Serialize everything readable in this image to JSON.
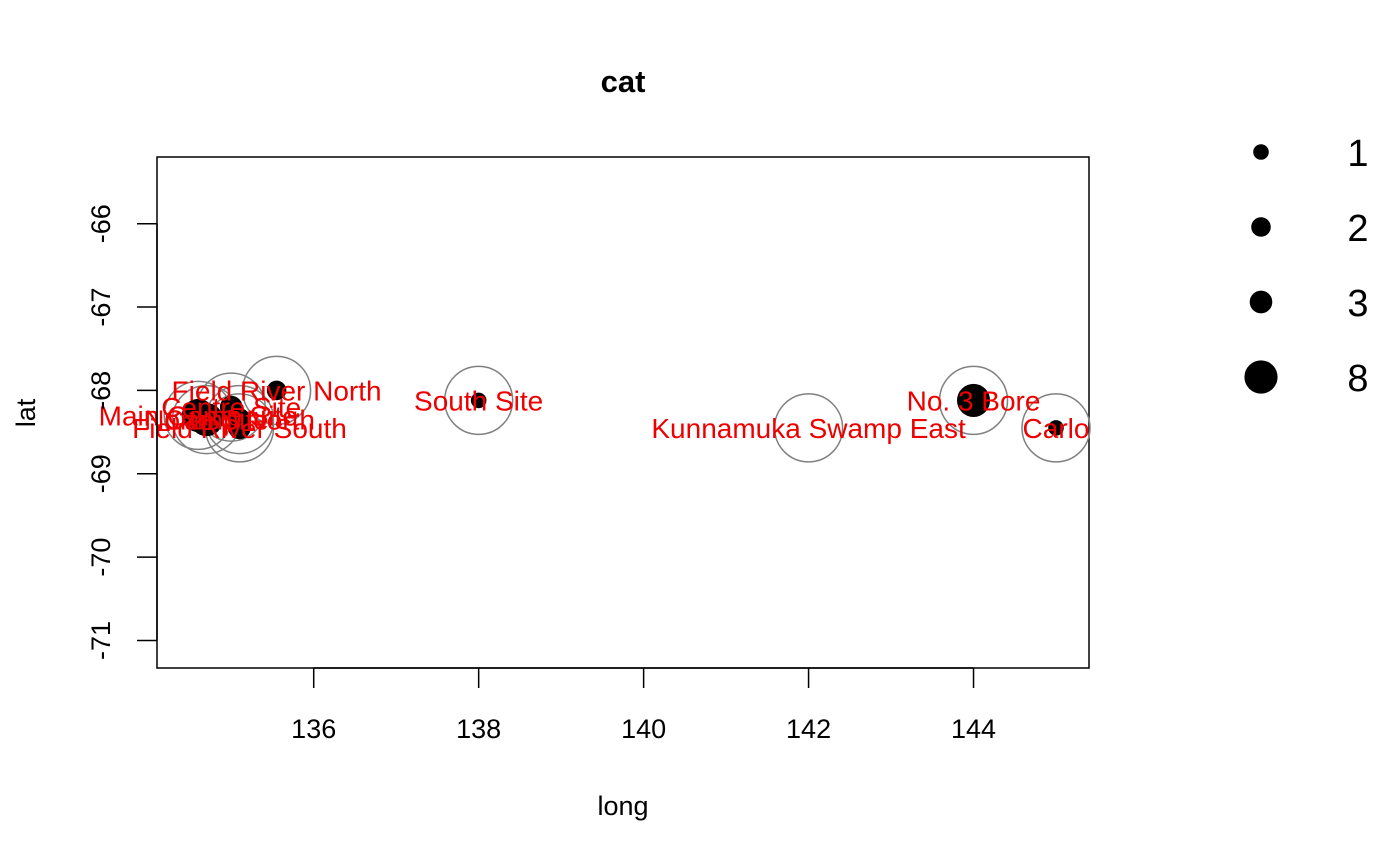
{
  "chart_data": {
    "type": "scatter",
    "title": "cat",
    "xlabel": "long",
    "ylabel": "lat",
    "xlim": [
      134.1,
      145.4
    ],
    "ylim": [
      -71.33,
      -65.2
    ],
    "xticks": [
      136,
      138,
      140,
      142,
      144
    ],
    "yticks": [
      -66,
      -67,
      -68,
      -69,
      -70,
      -71
    ],
    "grid": false,
    "legend_position": "right",
    "colors": {
      "points": "#000000",
      "rings": "#808080",
      "labels": "#ee0000"
    },
    "legend": [
      {
        "label": "1",
        "value": 1
      },
      {
        "label": "2",
        "value": 2
      },
      {
        "label": "3",
        "value": 3
      },
      {
        "label": "8",
        "value": 8
      }
    ],
    "points": [
      {
        "name": "Main Camp Site",
        "x": 134.6,
        "y": -68.3,
        "value": 8
      },
      {
        "name": "North Site",
        "x": 134.7,
        "y": -68.35,
        "value": 8
      },
      {
        "name": "Centre Site",
        "x": 135.0,
        "y": -68.2,
        "value": 3
      },
      {
        "name": "Camp North",
        "x": 135.1,
        "y": -68.35,
        "value": 3
      },
      {
        "name": "Field River North",
        "x": 135.55,
        "y": -68.0,
        "value": 2
      },
      {
        "name": "Field River South",
        "x": 135.1,
        "y": -68.45,
        "value": 3
      },
      {
        "name": "South Site",
        "x": 138.0,
        "y": -68.12,
        "value": 1
      },
      {
        "name": "Kunnamuka Swamp East",
        "x": 142.0,
        "y": -68.45,
        "value": 0
      },
      {
        "name": "No. 3 Bore",
        "x": 144.0,
        "y": -68.12,
        "value": 8
      },
      {
        "name": "Carlo",
        "x": 145.0,
        "y": -68.45,
        "value": 1
      }
    ],
    "labels": [
      {
        "text": "Main Camp Site",
        "x": 134.6,
        "y": -68.3
      },
      {
        "text": "North Site",
        "x": 134.7,
        "y": -68.35
      },
      {
        "text": "Centre Site",
        "x": 135.0,
        "y": -68.2
      },
      {
        "text": "Camp North",
        "x": 135.1,
        "y": -68.35
      },
      {
        "text": "Field River North",
        "x": 135.55,
        "y": -68.0
      },
      {
        "text": "Field River South",
        "x": 135.1,
        "y": -68.45
      },
      {
        "text": "South Site",
        "x": 138.0,
        "y": -68.12
      },
      {
        "text": "Kunnamuka Swamp East",
        "x": 142.0,
        "y": -68.45
      },
      {
        "text": "No. 3 Bore",
        "x": 144.0,
        "y": -68.12
      },
      {
        "text": "Carlo",
        "x": 145.0,
        "y": -68.45
      }
    ]
  }
}
